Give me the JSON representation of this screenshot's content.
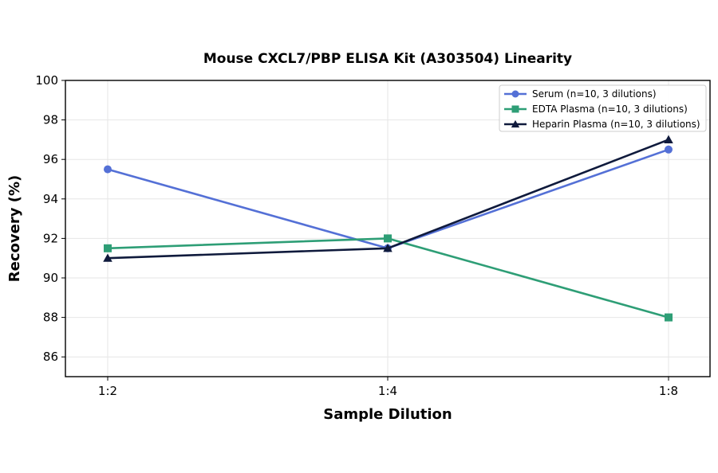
{
  "chart_data": {
    "type": "line",
    "title": "Mouse CXCL7/PBP ELISA Kit (A303504) Linearity",
    "xlabel": "Sample Dilution",
    "ylabel": "Recovery (%)",
    "categories": [
      "1:2",
      "1:4",
      "1:8"
    ],
    "ylim": [
      85,
      100
    ],
    "yticks": [
      86,
      88,
      90,
      92,
      94,
      96,
      98,
      100
    ],
    "grid": true,
    "legend_position": "top-right",
    "series": [
      {
        "name": "Serum (n=10, 3 dilutions)",
        "values": [
          95.5,
          91.5,
          96.5
        ],
        "color": "#5470d6",
        "marker": "circle"
      },
      {
        "name": "EDTA Plasma (n=10, 3 dilutions)",
        "values": [
          91.5,
          92.0,
          88.0
        ],
        "color": "#2e9e76",
        "marker": "square"
      },
      {
        "name": "Heparin Plasma (n=10, 3 dilutions)",
        "values": [
          91.0,
          91.5,
          97.0
        ],
        "color": "#0f1a3c",
        "marker": "triangle"
      }
    ]
  }
}
